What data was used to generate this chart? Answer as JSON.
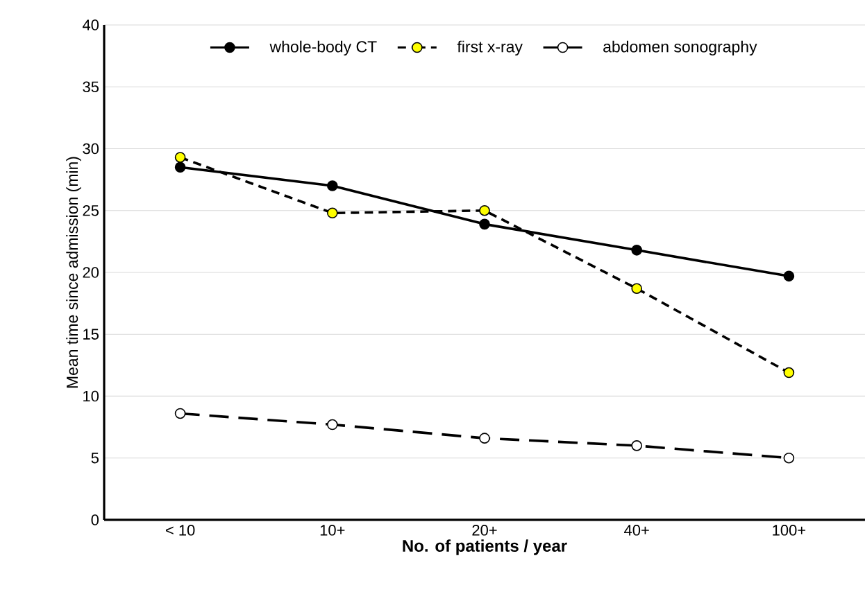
{
  "chart_data": {
    "type": "line",
    "xlabel": "No. of patients / year",
    "ylabel": "Mean time since admission (min)",
    "categories": [
      "< 10",
      "10+",
      "20+",
      "40+",
      "100+"
    ],
    "series": [
      {
        "name": "whole-body CT",
        "color": "#000000",
        "line_style": "solid",
        "values": [
          28.5,
          27.0,
          23.9,
          21.8,
          19.7
        ]
      },
      {
        "name": "first x-ray",
        "color": "#ffff00",
        "line_style": "dashed",
        "values": [
          29.3,
          24.8,
          25.0,
          18.7,
          11.9
        ]
      },
      {
        "name": "abdomen sonography",
        "color": "#ffffff",
        "line_style": "dashed",
        "values": [
          8.6,
          7.7,
          6.6,
          6.0,
          5.0
        ]
      }
    ],
    "ylim": [
      0,
      40
    ],
    "yticks": [
      0,
      5,
      10,
      15,
      20,
      25,
      30,
      35,
      40
    ],
    "grid": "y",
    "legend": "top",
    "marker": "circle"
  }
}
